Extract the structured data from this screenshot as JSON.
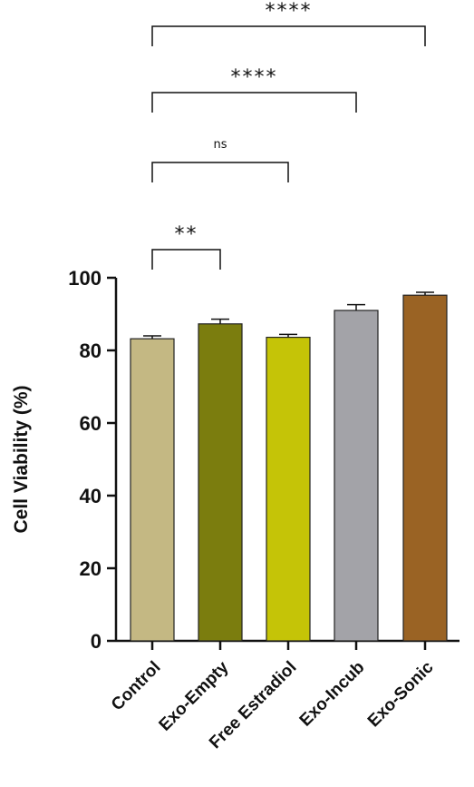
{
  "chart_data": {
    "type": "bar",
    "title": "",
    "xlabel": "",
    "ylabel": "Cell Viability (%)",
    "ylim": [
      0,
      100
    ],
    "yticks": [
      "0",
      "20",
      "40",
      "60",
      "80",
      "100"
    ],
    "grid": false,
    "categories": [
      "Control",
      "Exo-Empty",
      "Free Estradiol",
      "Exo-Incub",
      "Exo-Sonic"
    ],
    "values": [
      83.2,
      87.3,
      83.6,
      91.0,
      95.2
    ],
    "errors": [
      0.8,
      1.3,
      0.8,
      1.6,
      0.8
    ],
    "colors": [
      "#c4b883",
      "#7b7d0e",
      "#c5c407",
      "#a3a3a8",
      "#9a6324"
    ],
    "significance": [
      {
        "from": "Control",
        "to": "Exo-Empty",
        "label": "**"
      },
      {
        "from": "Control",
        "to": "Free Estradiol",
        "label": "ns"
      },
      {
        "from": "Control",
        "to": "Exo-Incub",
        "label": "****"
      },
      {
        "from": "Control",
        "to": "Exo-Sonic",
        "label": "****"
      }
    ]
  }
}
